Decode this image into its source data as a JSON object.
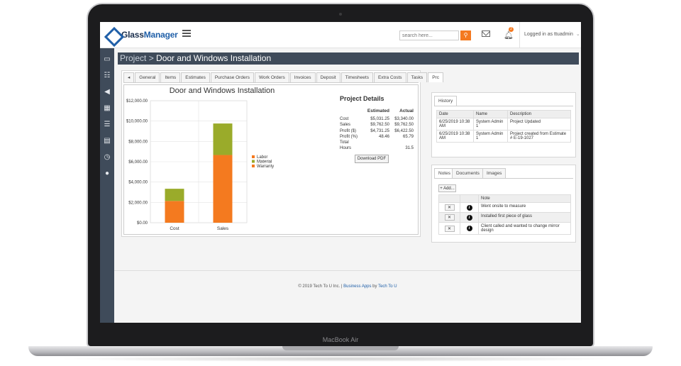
{
  "device": {
    "label": "MacBook Air"
  },
  "header": {
    "logo_main": "Glass",
    "logo_accent": "Manager",
    "search_placeholder": "search here...",
    "notification_count": "2",
    "user_text": "Logged in as ttuadmin"
  },
  "sidebar": {
    "items": [
      {
        "name": "dashboard-icon",
        "glyph": "▭"
      },
      {
        "name": "contacts-icon",
        "glyph": "☷"
      },
      {
        "name": "megaphone-icon",
        "glyph": "◀"
      },
      {
        "name": "grid-icon",
        "glyph": "▦"
      },
      {
        "name": "list-icon",
        "glyph": "☰"
      },
      {
        "name": "calendar-icon",
        "glyph": "▤"
      },
      {
        "name": "clock-icon",
        "glyph": "◷"
      },
      {
        "name": "user-icon",
        "glyph": "●"
      }
    ]
  },
  "page": {
    "crumb": "Project",
    "separator": " > ",
    "title": "Door and Windows Installation"
  },
  "tabs": [
    "◂",
    "General",
    "Items",
    "Estimates",
    "Purchase Orders",
    "Work Orders",
    "Invoices",
    "Deposit",
    "Timesheets",
    "Extra Costs",
    "Tasks",
    "Prc"
  ],
  "chart_data": {
    "type": "bar",
    "stacked": true,
    "title": "Door and Windows Installation",
    "categories": [
      "Cost",
      "Sales"
    ],
    "series": [
      {
        "name": "Labor",
        "color": "#f47a1f",
        "values": [
          0,
          0
        ]
      },
      {
        "name": "Material",
        "color": "#9aab2a",
        "values": [
          1200,
          3100
        ]
      },
      {
        "name": "Warranty",
        "color": "#f47a1f",
        "values": [
          2140,
          6660
        ]
      }
    ],
    "series_draw_order": [
      "Warranty",
      "Material"
    ],
    "ylim": [
      0,
      12000
    ],
    "yticks": [
      "$12,000.00",
      "$10,000.00",
      "$8,000.00",
      "$6,000.00",
      "$4,000.00",
      "$2,000.00",
      "$0.00"
    ],
    "legend_position": "right",
    "grid": true
  },
  "project_details": {
    "title": "Project Details",
    "col_estimated": "Estimated",
    "col_actual": "Actual",
    "rows": [
      {
        "label": "Cost",
        "estimated": "$5,031.25",
        "actual": "$3,340.00"
      },
      {
        "label": "Sales",
        "estimated": "$9,762.50",
        "actual": "$9,762.50"
      },
      {
        "label": "Profit ($)",
        "estimated": "$4,731.25",
        "actual": "$6,422.50"
      },
      {
        "label": "Profit (%)",
        "estimated": "48.46",
        "actual": "65.79"
      },
      {
        "label": "Total",
        "estimated": "",
        "actual": ""
      },
      {
        "label": "Hours",
        "estimated": "",
        "actual": "31.5"
      }
    ],
    "pdf_button": "Download PDF"
  },
  "history": {
    "tab": "History",
    "headers": [
      "Date",
      "Name",
      "Description"
    ],
    "rows": [
      [
        "6/25/2019 10:38 AM",
        "System Admin 1",
        "Project Updated"
      ],
      [
        "6/25/2019 10:38 AM",
        "System Admin 1",
        "Project created from Estimate # E-19-1027"
      ]
    ]
  },
  "notes": {
    "tabs": [
      "Notes",
      "Documents",
      "Images"
    ],
    "add_label": "+ Add...",
    "header": "Note",
    "rows": [
      "Went onsite to measure",
      "Installed first piece of glass",
      "Client called and wanted to change mirror design"
    ]
  },
  "footer": {
    "text": "© 2019 Tech To U Inc. | ",
    "link1": "Business Apps",
    "mid": " by ",
    "link2": "Tech To U"
  }
}
